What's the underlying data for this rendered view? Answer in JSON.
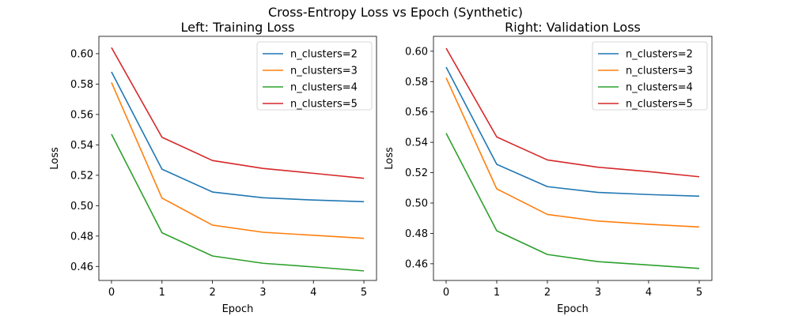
{
  "figure": {
    "suptitle": "Cross-Entropy Loss vs Epoch (Synthetic)"
  },
  "chart_data": [
    {
      "type": "line",
      "title": "Left: Training Loss",
      "xlabel": "Epoch",
      "ylabel": "Loss",
      "x": [
        0,
        1,
        2,
        3,
        4,
        5
      ],
      "xlim": [
        -0.25,
        5.25
      ],
      "ylim": [
        0.4508,
        0.6114
      ],
      "xticks": [
        "0",
        "1",
        "2",
        "3",
        "4",
        "5"
      ],
      "yticks": [
        "0.46",
        "0.48",
        "0.50",
        "0.52",
        "0.54",
        "0.56",
        "0.58",
        "0.60"
      ],
      "grid": false,
      "legend": "top-right",
      "series": [
        {
          "name": "n_clusters=2",
          "color": "#1f77b4",
          "values": [
            0.588,
            0.524,
            0.509,
            0.5052,
            0.5037,
            0.5026
          ]
        },
        {
          "name": "n_clusters=3",
          "color": "#ff7f0e",
          "values": [
            0.581,
            0.505,
            0.4872,
            0.4825,
            0.4805,
            0.4785
          ]
        },
        {
          "name": "n_clusters=4",
          "color": "#2ca02c",
          "values": [
            0.547,
            0.4822,
            0.4669,
            0.4621,
            0.4597,
            0.4571
          ]
        },
        {
          "name": "n_clusters=5",
          "color": "#d62728",
          "values": [
            0.604,
            0.545,
            0.5297,
            0.5245,
            0.5213,
            0.518
          ]
        }
      ]
    },
    {
      "type": "line",
      "title": "Right: Validation Loss",
      "xlabel": "Epoch",
      "ylabel": "Loss",
      "x": [
        0,
        1,
        2,
        3,
        4,
        5
      ],
      "xlim": [
        -0.25,
        5.25
      ],
      "ylim": [
        0.449,
        0.6098
      ],
      "xticks": [
        "0",
        "1",
        "2",
        "3",
        "4",
        "5"
      ],
      "yticks": [
        "0.46",
        "0.48",
        "0.50",
        "0.52",
        "0.54",
        "0.56",
        "0.58",
        "0.60"
      ],
      "grid": false,
      "legend": "top-right",
      "series": [
        {
          "name": "n_clusters=2",
          "color": "#1f77b4",
          "values": [
            0.5895,
            0.5255,
            0.5108,
            0.507,
            0.5056,
            0.5045
          ]
        },
        {
          "name": "n_clusters=3",
          "color": "#ff7f0e",
          "values": [
            0.5825,
            0.5093,
            0.4925,
            0.4881,
            0.486,
            0.4842
          ]
        },
        {
          "name": "n_clusters=4",
          "color": "#2ca02c",
          "values": [
            0.546,
            0.4817,
            0.4661,
            0.4614,
            0.4592,
            0.4569
          ]
        },
        {
          "name": "n_clusters=5",
          "color": "#d62728",
          "values": [
            0.602,
            0.5435,
            0.5284,
            0.5236,
            0.5207,
            0.5173
          ]
        }
      ]
    }
  ]
}
